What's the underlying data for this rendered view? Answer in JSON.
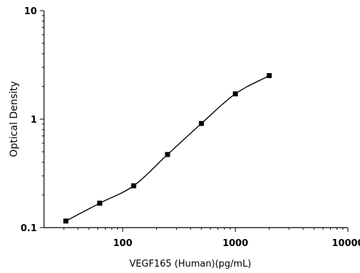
{
  "chart_data": {
    "type": "scatter",
    "title": "",
    "xlabel": "VEGF165 (Human)(pg/mL)",
    "ylabel": "Optical Density",
    "xscale": "log",
    "yscale": "log",
    "xlim": [
      20,
      10000
    ],
    "ylim": [
      0.1,
      10
    ],
    "xticks": [
      100,
      1000,
      10000
    ],
    "xtick_labels": [
      "100",
      "1000",
      "10000"
    ],
    "yticks": [
      0.1,
      1,
      10
    ],
    "ytick_labels": [
      "0.1",
      "1",
      "10"
    ],
    "grid": false,
    "legend": "none",
    "series": [
      {
        "x": [
          31.25,
          62.5,
          125,
          250,
          500,
          1000,
          2000
        ],
        "y": [
          0.115,
          0.168,
          0.243,
          0.472,
          0.912,
          1.71,
          2.52
        ],
        "marker": "square",
        "fit": "4PL"
      }
    ],
    "colors": {
      "marker": "#000000",
      "curve": "#000000",
      "axes": "#000000"
    }
  }
}
